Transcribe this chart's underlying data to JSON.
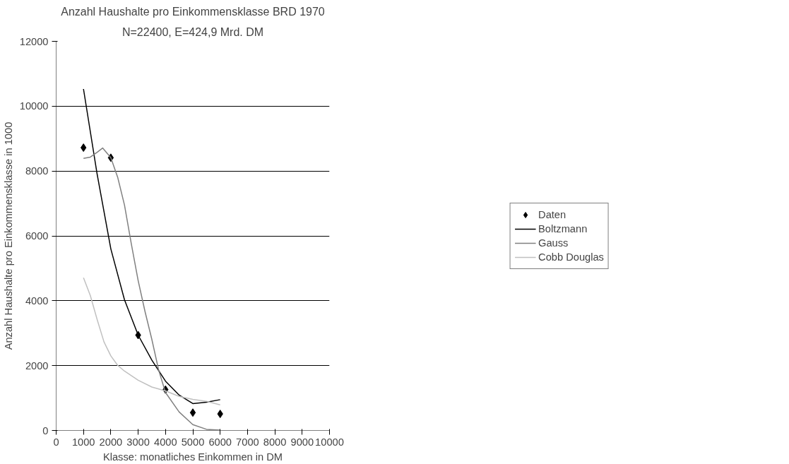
{
  "chart_data": {
    "type": "line",
    "title": "Anzahl Haushalte pro Einkommensklasse BRD 1970",
    "subtitle": "N=22400, E=424,9 Mrd. DM",
    "xlabel": "Klasse: monatliches Einkommen in DM",
    "ylabel": "Anzahl Haushalte pro Einkommensklasse in 1000",
    "xlim": [
      0,
      10000
    ],
    "xticks": [
      0,
      1000,
      2000,
      3000,
      4000,
      5000,
      6000,
      7000,
      8000,
      9000,
      10000
    ],
    "ylim": [
      0,
      12000
    ],
    "yticks": [
      0,
      2000,
      4000,
      6000,
      8000,
      10000,
      12000
    ],
    "grid": "y",
    "legend": "right",
    "series": [
      {
        "name": "Daten",
        "type": "scatter",
        "marker": "diamond",
        "color": "#000000",
        "x": [
          1000,
          2000,
          3000,
          4000,
          5000,
          6000
        ],
        "values": [
          8720,
          8410,
          2940,
          1260,
          550,
          510
        ]
      },
      {
        "name": "Boltzmann",
        "color": "#000000",
        "x": [
          1000,
          1500,
          2000,
          2500,
          3000,
          3500,
          4000,
          4500,
          5000,
          5500,
          6000
        ],
        "values": [
          10530,
          7900,
          5600,
          4030,
          2940,
          2170,
          1520,
          1090,
          830,
          870,
          950
        ]
      },
      {
        "name": "Gauss",
        "color": "#808080",
        "x": [
          1000,
          1250,
          1500,
          1700,
          2000,
          2250,
          2500,
          2750,
          3000,
          3250,
          3500,
          3750,
          4000,
          4500,
          5000,
          5500,
          6000
        ],
        "values": [
          8390,
          8430,
          8580,
          8710,
          8410,
          7810,
          6950,
          5750,
          4620,
          3670,
          2810,
          1860,
          1170,
          570,
          180,
          35,
          10
        ]
      },
      {
        "name": "Cobb Douglas",
        "color": "#c0c0c0",
        "x": [
          1000,
          1250,
          1500,
          1750,
          2000,
          2250,
          2500,
          3000,
          3500,
          4000,
          4500,
          5000,
          5500,
          6000
        ],
        "values": [
          4710,
          4160,
          3420,
          2730,
          2300,
          2010,
          1830,
          1550,
          1340,
          1220,
          1050,
          960,
          900,
          790
        ]
      }
    ]
  }
}
